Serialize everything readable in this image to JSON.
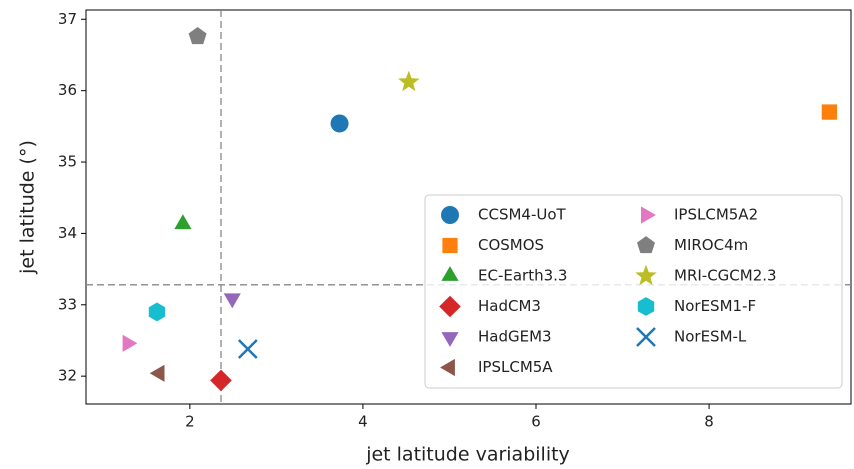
{
  "chart_data": {
    "type": "scatter",
    "xlabel": "jet latitude variability",
    "ylabel": "jet latitude  (°)",
    "xlim": [
      0.8,
      9.64
    ],
    "ylim": [
      31.61,
      37.13
    ],
    "xticks": [
      2,
      4,
      6,
      8
    ],
    "yticks": [
      32,
      33,
      34,
      35,
      36,
      37
    ],
    "vline": 2.36,
    "hline": 33.28,
    "legend": "lower right",
    "series": [
      {
        "name": "CCSM4-UoT",
        "color": "#1f77b4",
        "marker": "circle",
        "x": [
          3.73
        ],
        "y": [
          35.54
        ]
      },
      {
        "name": "COSMOS",
        "color": "#ff7f0e",
        "marker": "square",
        "x": [
          9.39
        ],
        "y": [
          35.7
        ]
      },
      {
        "name": "EC-Earth3.3",
        "color": "#2ca02c",
        "marker": "triangle-up",
        "x": [
          1.92
        ],
        "y": [
          34.13
        ]
      },
      {
        "name": "HadCM3",
        "color": "#d62728",
        "marker": "diamond",
        "x": [
          2.36
        ],
        "y": [
          31.94
        ]
      },
      {
        "name": "HadGEM3",
        "color": "#9467bd",
        "marker": "triangle-down",
        "x": [
          2.49
        ],
        "y": [
          33.09
        ]
      },
      {
        "name": "IPSLCM5A",
        "color": "#8c564b",
        "marker": "triangle-left",
        "x": [
          1.65
        ],
        "y": [
          32.04
        ]
      },
      {
        "name": "IPSLCM5A2",
        "color": "#e377c2",
        "marker": "triangle-right",
        "x": [
          1.28
        ],
        "y": [
          32.46
        ]
      },
      {
        "name": "MIROC4m",
        "color": "#7f7f7f",
        "marker": "pentagon",
        "x": [
          2.09
        ],
        "y": [
          36.76
        ]
      },
      {
        "name": "MRI-CGCM2.3",
        "color": "#bcbd22",
        "marker": "star",
        "x": [
          4.53
        ],
        "y": [
          36.12
        ]
      },
      {
        "name": "NorESM1-F",
        "color": "#17becf",
        "marker": "hexagon",
        "x": [
          1.62
        ],
        "y": [
          32.9
        ]
      },
      {
        "name": "NorESM-L",
        "color": "#1f77b4",
        "marker": "x",
        "x": [
          2.67
        ],
        "y": [
          32.38
        ]
      }
    ]
  }
}
